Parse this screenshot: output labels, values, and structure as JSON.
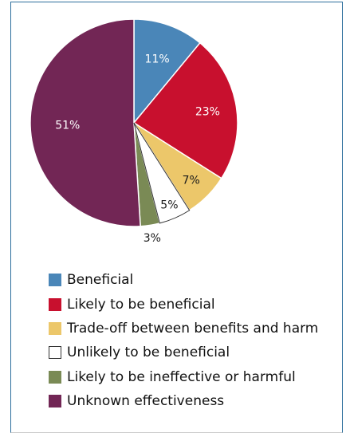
{
  "chart_data": {
    "type": "pie",
    "categories": [
      "Beneficial",
      "Likely to be beneficial",
      "Trade-off between benefits and harm",
      "Unlikely to be beneficial",
      "Likely to be ineffective or harmful",
      "Unknown effectiveness"
    ],
    "values": [
      11,
      23,
      7,
      5,
      3,
      51
    ],
    "value_labels": [
      "11%",
      "23%",
      "7%",
      "5%",
      "3%",
      "51%"
    ],
    "colors": [
      "#4a86b8",
      "#c8102e",
      "#ecc76a",
      "#ffffff",
      "#7a8a55",
      "#722655"
    ],
    "start_angle": "12 o'clock",
    "direction": "clockwise",
    "legend_position": "bottom"
  }
}
